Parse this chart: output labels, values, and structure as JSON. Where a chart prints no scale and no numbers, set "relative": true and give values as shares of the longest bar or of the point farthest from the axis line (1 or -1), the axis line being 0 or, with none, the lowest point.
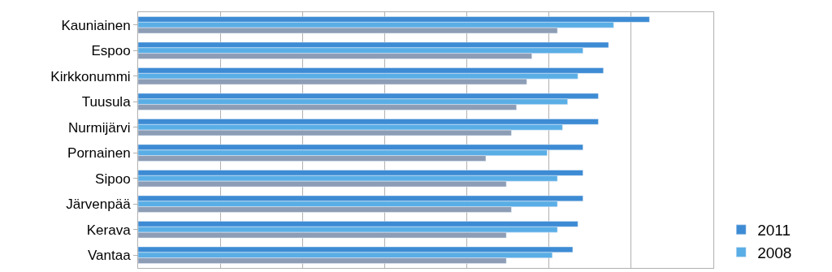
{
  "chart_data": {
    "type": "bar",
    "orientation": "horizontal",
    "relative": true,
    "grid": "x",
    "legend": "bottom right",
    "categories": [
      "Kauniainen",
      "Espoo",
      "Kirkkonummi",
      "Tuusula",
      "Nurmijärvi",
      "Pornainen",
      "Sipoo",
      "Järvenpää",
      "Kerava",
      "Vantaa"
    ],
    "series": [
      {
        "name": "2011",
        "color": "#3d8bd4",
        "values": [
          1,
          0.92,
          0.91,
          0.9,
          0.9,
          0.87,
          0.87,
          0.87,
          0.86,
          0.85
        ]
      },
      {
        "name": "2008",
        "color": "#5aaee6",
        "values": [
          0.93,
          0.87,
          0.86,
          0.84,
          0.83,
          0.8,
          0.82,
          0.82,
          0.82,
          0.81
        ]
      },
      {
        "color": "#8c9db5",
        "values": [
          0.82,
          0.77,
          0.76,
          0.74,
          0.73,
          0.68,
          0.72,
          0.73,
          0.72,
          0.72
        ]
      }
    ]
  }
}
